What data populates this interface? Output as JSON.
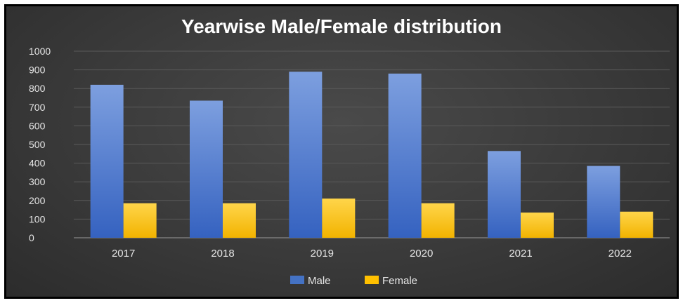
{
  "chart_data": {
    "type": "bar",
    "title": "Yearwise Male/Female distribution",
    "categories": [
      "2017",
      "2018",
      "2019",
      "2020",
      "2021",
      "2022"
    ],
    "series": [
      {
        "name": "Male",
        "values": [
          820,
          735,
          890,
          880,
          465,
          385
        ],
        "color": "#4472c4"
      },
      {
        "name": "Female",
        "values": [
          185,
          185,
          210,
          185,
          135,
          140
        ],
        "color": "#ffc000"
      }
    ],
    "ylim": [
      0,
      1000
    ],
    "yticks": [
      "0",
      "100",
      "200",
      "300",
      "400",
      "500",
      "600",
      "700",
      "800",
      "900",
      "1000"
    ],
    "grid": true,
    "legend": "bottom"
  }
}
